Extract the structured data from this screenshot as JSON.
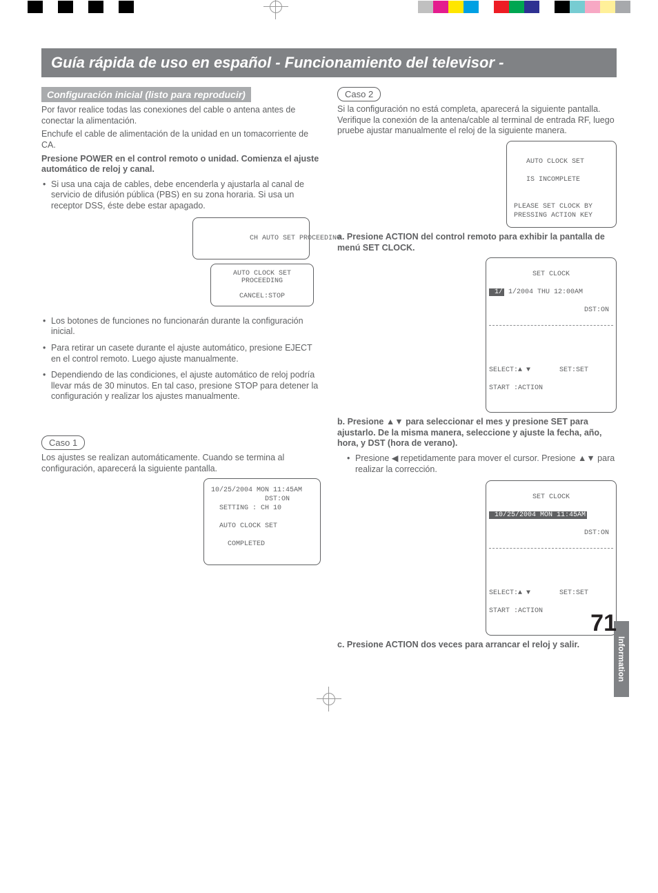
{
  "color_bar_left": [
    "#000000",
    "#ffffff",
    "#000000",
    "#ffffff",
    "#000000",
    "#ffffff",
    "#000000"
  ],
  "color_bar_right": [
    "#c0c0c0",
    "#e41d8e",
    "#ffe600",
    "#00a0e3",
    "#ffffff",
    "#ed1c24",
    "#00a651",
    "#2e3192",
    "#ffffff",
    "#000000",
    "#77ccd2",
    "#f7a8c4",
    "#fff099",
    "#a7a9ac"
  ],
  "title": "Guía rápida de uso en español - Funcionamiento del televisor -",
  "left": {
    "subhead": "Configuración inicial (listo para reproducir)",
    "p1": "Por favor realice todas las conexiones del cable o antena antes de conectar la alimentación.",
    "p2": "Enchufe el cable de alimentación de la unidad en un tomacorriente de CA.",
    "p3": "Presione POWER en el control remoto o unidad. Comienza el ajuste automático de reloj y canal.",
    "b1": "Si usa una caja de cables, debe encenderla y ajustarla al canal de servicio de difusión pública (PBS) en su zona horaria. Si usa un receptor DSS, éste debe estar apagado.",
    "screen_a_line1": "CH AUTO SET PROCEEDING",
    "screen_b_line1": "AUTO CLOCK SET",
    "screen_b_line2": "PROCEEDING",
    "screen_b_line3": "CANCEL:STOP",
    "b2": "Los botones de funciones no funcionarán durante la configuración inicial.",
    "b3": "Para retirar un casete durante el ajuste automático, presione EJECT en el control remoto. Luego ajuste manualmente.",
    "b4": "Dependiendo de las condiciones, el ajuste automático de reloj podría llevar más de 30 minutos. En tal caso, presione STOP para detener la configuración y realizar los ajustes manualmente.",
    "caso1": "Caso 1",
    "caso1_p": "Los ajustes se realizan automáticamente. Cuando se termina al configuración, aparecerá la siguiente pantalla.",
    "screen_c": "10/25/2004 MON 11:45AM\n             DST:ON\n  SETTING : CH 10\n\n  AUTO CLOCK SET\n\n    COMPLETED\n\n"
  },
  "right": {
    "caso2": "Caso 2",
    "caso2_p": "Si la configuración no está completa, aparecerá la siguiente pantalla. Verifique la conexión de la antena/cable al terminal de entrada RF, luego pruebe ajustar manualmente el reloj de la siguiente manera.",
    "screen_d": "\n   AUTO CLOCK SET\n\n   IS INCOMPLETE\n\n\nPLEASE SET CLOCK BY\nPRESSING ACTION KEY",
    "step_a": "a. Presione ACTION del control remoto para exhibir la pantalla de menú SET CLOCK.",
    "screen_e_title": "SET CLOCK",
    "screen_e_row1_hl": " 1/",
    "screen_e_row1_rest": " 1/2004 THU 12:00AM",
    "screen_e_row2": "DST:ON",
    "screen_e_foot1": "SELECT:▲ ▼       SET:SET",
    "screen_e_foot2": "START :ACTION",
    "step_b": "b. Presione ▲▼ para seleccionar el mes y presione SET para ajustarlo. De la misma manera, seleccione y ajuste la fecha, año, hora, y DST (hora de verano).",
    "step_b_sub": "Presione ◀ repetidamente para mover el cursor. Presione ▲▼ para realizar la corrección.",
    "screen_f_title": "SET CLOCK",
    "screen_f_row1_hl": " 10/25/2004 MON 11:45AM",
    "screen_f_row2": "DST:ON",
    "screen_f_foot1": "SELECT:▲ ▼       SET:SET",
    "screen_f_foot2": "START :ACTION",
    "step_c": "c. Presione ACTION dos veces para arrancar el reloj y salir."
  },
  "side_tab": "Information",
  "page_number": "71"
}
